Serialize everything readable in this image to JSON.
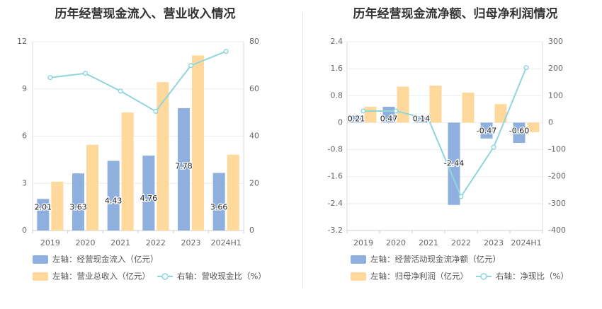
{
  "chart_data": [
    {
      "type": "bar",
      "title": "历年经营现金流入、营业收入情况",
      "categories": [
        "2019",
        "2020",
        "2021",
        "2022",
        "2023",
        "2024H1"
      ],
      "left_axis": {
        "ticks": [
          "0",
          "3",
          "6",
          "9",
          "12"
        ],
        "range": [
          0,
          12
        ]
      },
      "right_axis": {
        "ticks": [
          "0",
          "20",
          "40",
          "60",
          "80"
        ],
        "range": [
          0,
          80
        ]
      },
      "series": [
        {
          "name": "左轴：经营现金流入（亿元）",
          "axis": "left",
          "kind": "bar",
          "color": "#8fb0de",
          "values": [
            2.01,
            3.63,
            4.43,
            4.76,
            7.78,
            3.66
          ],
          "labels": [
            "2.01",
            "3.63",
            "4.43",
            "4.76",
            "7.78",
            "3.66"
          ]
        },
        {
          "name": "左轴：营业总收入（亿元）",
          "axis": "left",
          "kind": "bar",
          "color": "#fed99b",
          "values": [
            3.1,
            5.45,
            7.5,
            9.43,
            11.13,
            4.82
          ]
        },
        {
          "name": "右轴：营收现金比（%）",
          "axis": "right",
          "kind": "line",
          "color": "#8fd6dc",
          "values": [
            64.8,
            66.6,
            59.1,
            50.5,
            69.9,
            75.9
          ]
        }
      ],
      "grid": true
    },
    {
      "type": "bar",
      "title": "历年经营现金流净额、归母净利润情况",
      "categories": [
        "2019",
        "2020",
        "2021",
        "2022",
        "2023",
        "2024H1"
      ],
      "left_axis": {
        "ticks": [
          "-3.2",
          "-2.4",
          "-1.6",
          "-0.8",
          "0",
          "0.8",
          "1.6",
          "2.4"
        ],
        "range": [
          -3.2,
          2.4
        ]
      },
      "right_axis": {
        "ticks": [
          "-400",
          "-300",
          "-200",
          "-100",
          "0",
          "100",
          "200",
          "300"
        ],
        "range": [
          -400,
          300
        ]
      },
      "series": [
        {
          "name": "左轴：经营活动现金流净额（亿元）",
          "axis": "left",
          "kind": "bar",
          "color": "#8fb0de",
          "values": [
            0.21,
            0.47,
            0.14,
            -2.44,
            -0.47,
            -0.6
          ],
          "labels": [
            "0.21",
            "0.47",
            "0.14",
            "-2.44",
            "-0.47",
            "-0.60"
          ]
        },
        {
          "name": "左轴：归母净利润（亿元）",
          "axis": "left",
          "kind": "bar",
          "color": "#fed99b",
          "values": [
            0.47,
            1.07,
            1.1,
            0.89,
            0.55,
            -0.28
          ]
        },
        {
          "name": "右轴：净现比（%）",
          "axis": "right",
          "kind": "line",
          "color": "#8fd6dc",
          "values": [
            43,
            43,
            13,
            -274,
            -91,
            204
          ]
        }
      ],
      "grid": true
    }
  ]
}
